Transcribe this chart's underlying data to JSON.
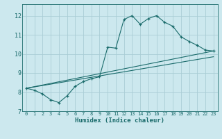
{
  "xlabel": "Humidex (Indice chaleur)",
  "bg_color": "#cce8ee",
  "grid_color": "#aacdd5",
  "line_color": "#1a6b6b",
  "xlim": [
    -0.5,
    23.5
  ],
  "ylim": [
    7,
    12.6
  ],
  "yticks": [
    7,
    8,
    9,
    10,
    11,
    12
  ],
  "xticks": [
    0,
    1,
    2,
    3,
    4,
    5,
    6,
    7,
    8,
    9,
    10,
    11,
    12,
    13,
    14,
    15,
    16,
    17,
    18,
    19,
    20,
    21,
    22,
    23
  ],
  "main_x": [
    0,
    1,
    2,
    3,
    4,
    5,
    6,
    7,
    8,
    9,
    10,
    11,
    12,
    13,
    14,
    15,
    16,
    17,
    18,
    19,
    20,
    21,
    22,
    23
  ],
  "main_y": [
    8.2,
    8.1,
    7.9,
    7.6,
    7.45,
    7.8,
    8.3,
    8.55,
    8.7,
    8.8,
    10.35,
    10.3,
    11.8,
    12.0,
    11.55,
    11.85,
    12.0,
    11.65,
    11.45,
    10.9,
    10.65,
    10.45,
    10.2,
    10.15
  ],
  "line1_x": [
    0,
    23
  ],
  "line1_y": [
    8.2,
    10.15
  ],
  "line2_x": [
    0,
    23
  ],
  "line2_y": [
    8.2,
    9.85
  ]
}
